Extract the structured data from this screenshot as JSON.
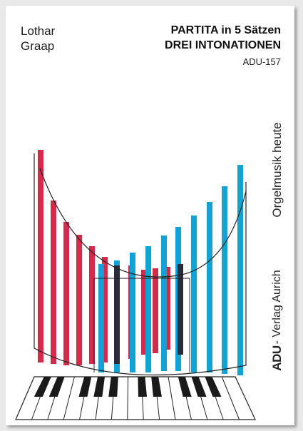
{
  "cover": {
    "author_first": "Lothar",
    "author_last": "Graap",
    "title_line1": "PARTITA in 5 Sätzen",
    "title_line2": "DREI INTONATIONEN",
    "catalog": "ADU-157",
    "series": "Orgelmusik heute",
    "publisher_logo": "ADU",
    "publisher_text": "- Verlag Aurich"
  },
  "colors": {
    "red": "#d72a4b",
    "blue": "#12a3d6",
    "ink": "#1a1a1a"
  },
  "icons": [
    "organ-pipes-artwork",
    "piano-keyboard-artwork"
  ]
}
